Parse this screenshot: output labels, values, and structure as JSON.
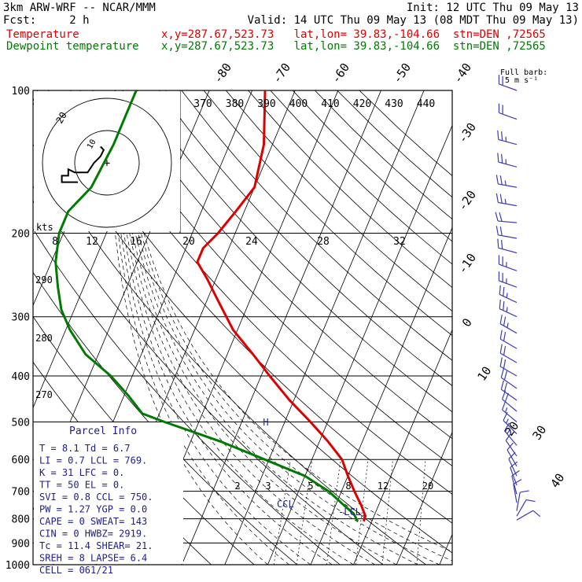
{
  "header": {
    "model": "3km ARW-WRF -- NCAR/MMM",
    "init": "Init: 12 UTC Thu 09 May 13",
    "fcst": "Fcst:     2 h",
    "valid": "Valid: 14 UTC Thu 09 May 13 (08 MDT Thu 09 May 13)"
  },
  "legend": [
    {
      "name": "Temperature",
      "info": "x,y=287.67,523.73   lat,lon= 39.83,-104.66  stn=DEN ,72565",
      "color": "#dd0000"
    },
    {
      "name": "Dewpoint temperature",
      "info": "x,y=287.67,523.73   lat,lon= 39.83,-104.66  stn=DEN ,72565",
      "color": "#007a00"
    }
  ],
  "barb_key": {
    "line1": "Full barb:",
    "line2": "5 m s⁻¹"
  },
  "parcel_info": {
    "title": "Parcel Info",
    "rows": [
      "T   =     8.1  Td =   6.7",
      "LI  =     0.7  LCL =  769.",
      "K   =      31  LFC =    0.",
      "TT  =      50  EL  =    0.",
      "SVI =     0.8  CCL =  750.",
      "PW  =    1.27  YGP =   0.0",
      "CAPE =      0  SWEAT=  143",
      "CIN  =      0  HWBZ= 2919.",
      "Tc  =    11.4  SHEAR=  21.",
      "SREH =      8  LAPSE=  6.4",
      "CELL = 061/21"
    ]
  },
  "hodograph": {
    "units": "kts",
    "ring_labels": [
      "20",
      "10"
    ],
    "points_kts": [
      [
        -9,
        -6
      ],
      [
        -11,
        -6
      ],
      [
        -14,
        -6
      ],
      [
        -14,
        -4
      ],
      [
        -12,
        -4
      ],
      [
        -12,
        -2
      ],
      [
        -10,
        -3
      ],
      [
        -6,
        -3
      ],
      [
        -4,
        0
      ],
      [
        -3,
        1
      ],
      [
        -2,
        2
      ],
      [
        -1,
        4
      ],
      [
        -2,
        5
      ]
    ]
  },
  "markers": {
    "ccl": "CCL",
    "lcl": "-LCL",
    "h": "H"
  },
  "chart_data": {
    "type": "line",
    "title": "",
    "pressure_levels": [
      100,
      200,
      300,
      400,
      500,
      600,
      700,
      800,
      900,
      1000
    ],
    "isotherm_labels": [
      "-80",
      "-70",
      "-60",
      "-50",
      "-40",
      "-30",
      "-20",
      "-10",
      "0",
      "10",
      "20",
      "30",
      "40"
    ],
    "theta_labels": [
      "370",
      "380",
      "390",
      "400",
      "410",
      "420",
      "430",
      "440"
    ],
    "mixing_ratio_labels_upper": [
      "8",
      "12",
      "16",
      "20",
      "24",
      "28",
      "32"
    ],
    "mixing_ratio_labels_lower": [
      "2",
      "3",
      "5",
      "8",
      "12",
      "20"
    ],
    "theta_labels_left": [
      "290",
      "280",
      "270"
    ],
    "series": [
      {
        "name": "Temperature",
        "color": "#dd0000",
        "points": [
          [
            100,
            -57
          ],
          [
            130,
            -52
          ],
          [
            160,
            -50
          ],
          [
            180,
            -52
          ],
          [
            200,
            -54
          ],
          [
            215,
            -56
          ],
          [
            230,
            -56
          ],
          [
            250,
            -52
          ],
          [
            280,
            -47
          ],
          [
            320,
            -41
          ],
          [
            360,
            -34
          ],
          [
            400,
            -28
          ],
          [
            450,
            -21
          ],
          [
            500,
            -14
          ],
          [
            550,
            -8
          ],
          [
            600,
            -3
          ],
          [
            650,
            0
          ],
          [
            700,
            3
          ],
          [
            750,
            6
          ],
          [
            790,
            8
          ],
          [
            810,
            8.1
          ]
        ]
      },
      {
        "name": "Dewpoint temperature",
        "color": "#007a00",
        "points": [
          [
            100,
            -87
          ],
          [
            130,
            -87
          ],
          [
            160,
            -88
          ],
          [
            180,
            -91
          ],
          [
            200,
            -91
          ],
          [
            230,
            -89
          ],
          [
            260,
            -86
          ],
          [
            290,
            -83
          ],
          [
            320,
            -79
          ],
          [
            360,
            -73
          ],
          [
            400,
            -65
          ],
          [
            440,
            -59
          ],
          [
            480,
            -54
          ],
          [
            500,
            -48
          ],
          [
            550,
            -33
          ],
          [
            600,
            -21
          ],
          [
            650,
            -10
          ],
          [
            700,
            -3
          ],
          [
            750,
            2
          ],
          [
            780,
            5
          ],
          [
            810,
            6.7
          ]
        ]
      }
    ],
    "wind_barbs_kts": [
      {
        "p": 100,
        "spd": 20,
        "dir": 290
      },
      {
        "p": 115,
        "spd": 20,
        "dir": 290
      },
      {
        "p": 130,
        "spd": 25,
        "dir": 285
      },
      {
        "p": 145,
        "spd": 25,
        "dir": 285
      },
      {
        "p": 160,
        "spd": 25,
        "dir": 280
      },
      {
        "p": 175,
        "spd": 25,
        "dir": 280
      },
      {
        "p": 190,
        "spd": 20,
        "dir": 275
      },
      {
        "p": 205,
        "spd": 20,
        "dir": 280
      },
      {
        "p": 220,
        "spd": 20,
        "dir": 285
      },
      {
        "p": 240,
        "spd": 25,
        "dir": 290
      },
      {
        "p": 260,
        "spd": 25,
        "dir": 290
      },
      {
        "p": 280,
        "spd": 25,
        "dir": 295
      },
      {
        "p": 300,
        "spd": 25,
        "dir": 295
      },
      {
        "p": 325,
        "spd": 25,
        "dir": 300
      },
      {
        "p": 350,
        "spd": 20,
        "dir": 300
      },
      {
        "p": 375,
        "spd": 20,
        "dir": 300
      },
      {
        "p": 400,
        "spd": 20,
        "dir": 300
      },
      {
        "p": 425,
        "spd": 20,
        "dir": 305
      },
      {
        "p": 450,
        "spd": 20,
        "dir": 305
      },
      {
        "p": 475,
        "spd": 20,
        "dir": 310
      },
      {
        "p": 500,
        "spd": 15,
        "dir": 310
      },
      {
        "p": 530,
        "spd": 15,
        "dir": 315
      },
      {
        "p": 560,
        "spd": 15,
        "dir": 320
      },
      {
        "p": 590,
        "spd": 10,
        "dir": 325
      },
      {
        "p": 620,
        "spd": 10,
        "dir": 330
      },
      {
        "p": 650,
        "spd": 10,
        "dir": 335
      },
      {
        "p": 680,
        "spd": 10,
        "dir": 340
      },
      {
        "p": 710,
        "spd": 10,
        "dir": 345
      },
      {
        "p": 740,
        "spd": 10,
        "dir": 350
      },
      {
        "p": 770,
        "spd": 10,
        "dir": 10
      },
      {
        "p": 790,
        "spd": 10,
        "dir": 30
      },
      {
        "p": 805,
        "spd": 10,
        "dir": 60
      }
    ],
    "colors": {
      "isobar": "#000000",
      "skew": "#000000",
      "barb": "#3c3cb4",
      "parcel": "#1e1e8c"
    }
  }
}
